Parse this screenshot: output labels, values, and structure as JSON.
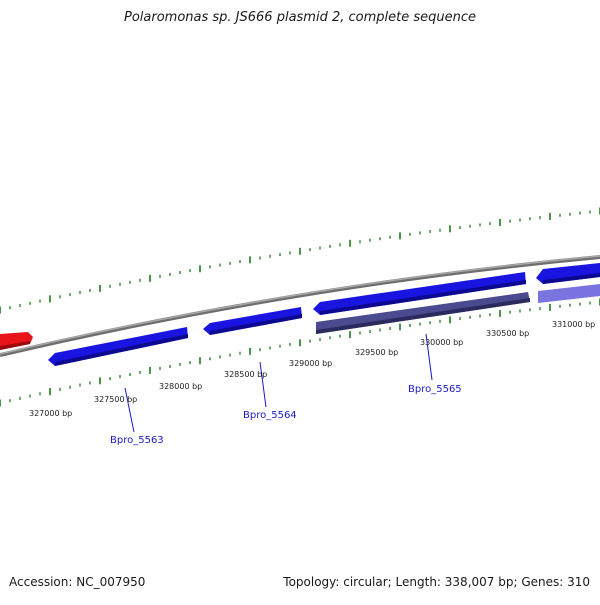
{
  "title": "Polaromonas sp. JS666 plasmid 2, complete sequence",
  "footer": {
    "accession": "Accession: NC_007950",
    "summary": "Topology: circular; Length: 338,007 bp; Genes: 310"
  },
  "scale_labels": [
    "327000 bp",
    "327500 bp",
    "328000 bp",
    "328500 bp",
    "329000 bp",
    "329500 bp",
    "330000 bp",
    "330500 bp",
    "331000 bp"
  ],
  "gene_labels": [
    "Bpro_5563",
    "Bpro_5564",
    "Bpro_5565"
  ],
  "colors": {
    "backbone": "#8a8a8a",
    "tick": "#1e7a1e",
    "forward_gene": "#e8141a",
    "reverse_gene": "#1a14e0",
    "dark_gene": "#4a4a8e",
    "light_gene": "#7a74e0",
    "gene_label": "#1a1ac8"
  }
}
